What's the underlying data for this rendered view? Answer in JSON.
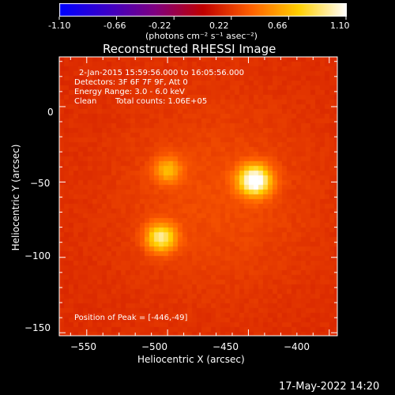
{
  "colorbar": {
    "ticks": [
      "-1.10",
      "-0.66",
      "-0.22",
      "0.22",
      "0.66",
      "1.10"
    ],
    "unit_label": "(photons cm⁻² s⁻¹ asec⁻²)",
    "min": -1.1,
    "max": 1.1
  },
  "chart_data": {
    "type": "heatmap",
    "title": "Reconstructed RHESSI Image",
    "xlabel": "Heliocentric X (arcsec)",
    "ylabel": "Heliocentric Y (arcsec)",
    "xlim": [
      -567,
      -395
    ],
    "ylim": [
      -152,
      33
    ],
    "x_ticks": [
      -550,
      -500,
      -450,
      -400
    ],
    "y_ticks": [
      0,
      -50,
      -100,
      -150
    ],
    "x_tick_labels": [
      "−550",
      "−500",
      "−450",
      "−400"
    ],
    "y_tick_labels": [
      "0",
      "−50",
      "−100",
      "−150"
    ],
    "sources": [
      {
        "x": -446,
        "y": -49,
        "peak": 1.0,
        "sigma": 7
      },
      {
        "x": -504,
        "y": -87,
        "peak": 0.72,
        "sigma": 6.5
      },
      {
        "x": -500,
        "y": -42,
        "peak": 0.42,
        "sigma": 6
      }
    ],
    "background": 0.17,
    "colormap": [
      "#0000ff",
      "#3c00c8",
      "#800080",
      "#c00000",
      "#ff6000",
      "#ffd000",
      "#ffffff"
    ],
    "annotations": {
      "time_range": "2-Jan-2015 15:59:56.000 to 16:05:56.000",
      "detectors": "Detectors: 3F 6F 7F 9F, Att 0",
      "energy": "Energy Range: 3.0 - 6.0 keV",
      "method": "Clean",
      "counts": "Total counts: 1.06E+05",
      "peak": "Position of Peak = [-446,-49]"
    }
  },
  "timestamp": "17-May-2022 14:20"
}
